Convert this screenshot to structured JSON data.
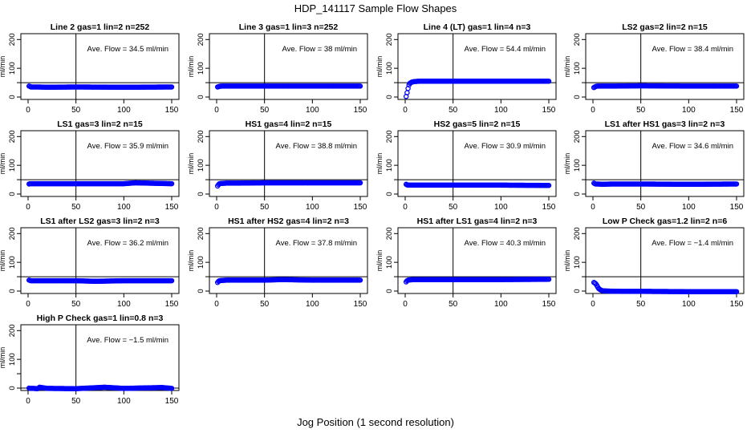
{
  "figure": {
    "title": "HDP_141117  Sample Flow Shapes",
    "xlabel": "Jog Position (1 second resolution)"
  },
  "chart_data": [
    {
      "type": "scatter",
      "title": "Line 2 gas=1 lin=2 n=252",
      "ylabel": "ml/min",
      "annotation": "Ave. Flow =  34.5  ml/min",
      "xlim": [
        0,
        150
      ],
      "ylim": [
        0,
        200
      ],
      "xticks": [
        0,
        50,
        100,
        150
      ],
      "yticks": [
        0,
        100,
        200
      ],
      "ytick_labels": [
        "0",
        "100",
        "200"
      ],
      "extra_yticks": [
        50
      ],
      "vline_x": 50,
      "hline_y": 50,
      "series": [
        {
          "x": [
            1,
            2,
            3,
            5,
            10,
            20,
            50,
            100,
            150
          ],
          "y": [
            38,
            37,
            35,
            35,
            35,
            34,
            35,
            34,
            35
          ]
        }
      ]
    },
    {
      "type": "scatter",
      "title": "Line 3 gas=1 lin=3 n=252",
      "ylabel": "ml/min",
      "annotation": "Ave. Flow =  38  ml/min",
      "xlim": [
        0,
        150
      ],
      "ylim": [
        0,
        200
      ],
      "xticks": [
        0,
        50,
        100,
        150
      ],
      "yticks": [
        0,
        100,
        200
      ],
      "ytick_labels": [
        "0",
        "100",
        "200"
      ],
      "extra_yticks": [
        50
      ],
      "vline_x": 50,
      "hline_y": 50,
      "series": [
        {
          "x": [
            1,
            2,
            3,
            5,
            10,
            20,
            50,
            100,
            150
          ],
          "y": [
            35,
            36,
            37,
            38,
            38,
            38,
            38,
            38,
            38
          ]
        }
      ]
    },
    {
      "type": "scatter",
      "title": "Line 4 (LT) gas=1 lin=4 n=3",
      "ylabel": "ml/min",
      "annotation": "Ave. Flow =  54.4  ml/min",
      "xlim": [
        0,
        150
      ],
      "ylim": [
        0,
        200
      ],
      "xticks": [
        0,
        50,
        100,
        150
      ],
      "yticks": [
        0,
        100,
        200
      ],
      "ytick_labels": [
        "0",
        "100",
        "200"
      ],
      "extra_yticks": [
        50
      ],
      "vline_x": 50,
      "hline_y": 50,
      "series": [
        {
          "x": [
            1,
            2,
            3,
            4,
            5,
            7,
            10,
            15,
            30,
            50,
            75,
            100,
            125,
            150
          ],
          "y": [
            2,
            15,
            30,
            42,
            48,
            52,
            54,
            55,
            55,
            55,
            55,
            55,
            55,
            55
          ]
        }
      ]
    },
    {
      "type": "scatter",
      "title": "LS2 gas=2 lin=2 n=15",
      "ylabel": "ml/min",
      "annotation": "Ave. Flow =  38.4  ml/min",
      "xlim": [
        0,
        150
      ],
      "ylim": [
        0,
        200
      ],
      "xticks": [
        0,
        50,
        100,
        150
      ],
      "yticks": [
        0,
        100,
        200
      ],
      "ytick_labels": [
        "0",
        "100",
        "200"
      ],
      "extra_yticks": [
        50
      ],
      "vline_x": 50,
      "hline_y": 50,
      "series": [
        {
          "x": [
            1,
            2,
            3,
            5,
            10,
            20,
            50,
            100,
            150
          ],
          "y": [
            33,
            35,
            37,
            38,
            38,
            38,
            39,
            38,
            38
          ]
        }
      ]
    },
    {
      "type": "scatter",
      "title": "LS1 gas=3 lin=2 n=15",
      "ylabel": "ml/min",
      "annotation": "Ave. Flow =  35.9  ml/min",
      "xlim": [
        0,
        150
      ],
      "ylim": [
        0,
        200
      ],
      "xticks": [
        0,
        50,
        100,
        150
      ],
      "yticks": [
        0,
        100,
        200
      ],
      "ytick_labels": [
        "0",
        "100",
        "200"
      ],
      "extra_yticks": [
        50
      ],
      "vline_x": 50,
      "hline_y": 50,
      "series": [
        {
          "x": [
            1,
            2,
            3,
            5,
            10,
            20,
            50,
            100,
            112,
            150
          ],
          "y": [
            35,
            36,
            36,
            36,
            36,
            36,
            36,
            36,
            39,
            36
          ]
        }
      ]
    },
    {
      "type": "scatter",
      "title": "HS1 gas=4 lin=2 n=15",
      "ylabel": "ml/min",
      "annotation": "Ave. Flow =  38.8  ml/min",
      "xlim": [
        0,
        150
      ],
      "ylim": [
        0,
        200
      ],
      "xticks": [
        0,
        50,
        100,
        150
      ],
      "yticks": [
        0,
        100,
        200
      ],
      "ytick_labels": [
        "0",
        "100",
        "200"
      ],
      "extra_yticks": [
        50
      ],
      "vline_x": 50,
      "hline_y": 50,
      "series": [
        {
          "x": [
            1,
            2,
            3,
            5,
            10,
            20,
            50,
            100,
            150
          ],
          "y": [
            28,
            33,
            36,
            37,
            38,
            38,
            39,
            39,
            39
          ]
        }
      ]
    },
    {
      "type": "scatter",
      "title": "HS2 gas=5 lin=2 n=15",
      "ylabel": "ml/min",
      "annotation": "Ave. Flow =  30.9  ml/min",
      "xlim": [
        0,
        150
      ],
      "ylim": [
        0,
        200
      ],
      "xticks": [
        0,
        50,
        100,
        150
      ],
      "yticks": [
        0,
        100,
        200
      ],
      "ytick_labels": [
        "0",
        "100",
        "200"
      ],
      "extra_yticks": [
        50
      ],
      "vline_x": 50,
      "hline_y": 50,
      "series": [
        {
          "x": [
            1,
            2,
            3,
            5,
            10,
            20,
            50,
            100,
            150
          ],
          "y": [
            34,
            32,
            31,
            31,
            31,
            31,
            31,
            31,
            30
          ]
        }
      ]
    },
    {
      "type": "scatter",
      "title": "LS1 after HS1 gas=3 lin=2 n=3",
      "ylabel": "ml/min",
      "annotation": "Ave. Flow =  34.6  ml/min",
      "xlim": [
        0,
        150
      ],
      "ylim": [
        0,
        200
      ],
      "xticks": [
        0,
        50,
        100,
        150
      ],
      "yticks": [
        0,
        100,
        200
      ],
      "ytick_labels": [
        "0",
        "100",
        "200"
      ],
      "extra_yticks": [
        50
      ],
      "vline_x": 50,
      "hline_y": 50,
      "series": [
        {
          "x": [
            1,
            2,
            3,
            5,
            10,
            20,
            50,
            100,
            150
          ],
          "y": [
            38,
            36,
            35,
            35,
            34,
            35,
            35,
            34,
            35
          ]
        }
      ]
    },
    {
      "type": "scatter",
      "title": "LS1 after LS2 gas=3 lin=2 n=3",
      "ylabel": "ml/min",
      "annotation": "Ave. Flow =  36.2  ml/min",
      "xlim": [
        0,
        150
      ],
      "ylim": [
        0,
        200
      ],
      "xticks": [
        0,
        50,
        100,
        150
      ],
      "yticks": [
        0,
        100,
        200
      ],
      "ytick_labels": [
        "0",
        "100",
        "200"
      ],
      "extra_yticks": [
        50
      ],
      "vline_x": 50,
      "hline_y": 50,
      "series": [
        {
          "x": [
            1,
            2,
            3,
            5,
            10,
            20,
            50,
            70,
            100,
            150
          ],
          "y": [
            38,
            37,
            36,
            36,
            36,
            36,
            36,
            34,
            36,
            36
          ]
        }
      ]
    },
    {
      "type": "scatter",
      "title": "HS1 after HS2 gas=4 lin=2 n=3",
      "ylabel": "ml/min",
      "annotation": "Ave. Flow =  37.8  ml/min",
      "xlim": [
        0,
        150
      ],
      "ylim": [
        0,
        200
      ],
      "xticks": [
        0,
        50,
        100,
        150
      ],
      "yticks": [
        0,
        100,
        200
      ],
      "ytick_labels": [
        "0",
        "100",
        "200"
      ],
      "extra_yticks": [
        50
      ],
      "vline_x": 50,
      "hline_y": 50,
      "series": [
        {
          "x": [
            1,
            2,
            3,
            5,
            10,
            20,
            50,
            68,
            100,
            150
          ],
          "y": [
            30,
            34,
            36,
            37,
            38,
            38,
            38,
            40,
            38,
            38
          ]
        }
      ]
    },
    {
      "type": "scatter",
      "title": "HS1 after LS1 gas=4 lin=2 n=3",
      "ylabel": "ml/min",
      "annotation": "Ave. Flow =  40.3  ml/min",
      "xlim": [
        0,
        150
      ],
      "ylim": [
        0,
        200
      ],
      "xticks": [
        0,
        50,
        100,
        150
      ],
      "yticks": [
        0,
        100,
        200
      ],
      "ytick_labels": [
        "0",
        "100",
        "200"
      ],
      "extra_yticks": [
        50
      ],
      "vline_x": 50,
      "hline_y": 50,
      "series": [
        {
          "x": [
            1,
            2,
            3,
            5,
            10,
            20,
            50,
            100,
            150
          ],
          "y": [
            32,
            36,
            38,
            39,
            40,
            40,
            40,
            40,
            41
          ]
        }
      ]
    },
    {
      "type": "scatter",
      "title": "Low P Check gas=1.2 lin=2 n=6",
      "ylabel": "ml/min",
      "annotation": "Ave. Flow =  −1.4  ml/min",
      "xlim": [
        0,
        150
      ],
      "ylim": [
        0,
        200
      ],
      "xticks": [
        0,
        50,
        100,
        150
      ],
      "yticks": [
        0,
        100,
        200
      ],
      "ytick_labels": [
        "0",
        "100",
        "200"
      ],
      "extra_yticks": [
        50
      ],
      "vline_x": 50,
      "hline_y": 50,
      "series": [
        {
          "x": [
            1,
            2,
            3,
            4,
            5,
            6,
            8,
            10,
            15,
            30,
            50,
            100,
            150
          ],
          "y": [
            30,
            28,
            25,
            20,
            14,
            9,
            4,
            1,
            0,
            -1,
            -1,
            -2,
            -2
          ]
        }
      ]
    },
    {
      "type": "scatter",
      "title": "High P Check gas=1 lin=0.8 n=3",
      "ylabel": "ml/min",
      "annotation": "Ave. Flow =  −1.5  ml/min",
      "xlim": [
        0,
        150
      ],
      "ylim": [
        0,
        200
      ],
      "xticks": [
        0,
        50,
        100,
        150
      ],
      "yticks": [
        0,
        100,
        200
      ],
      "ytick_labels": [
        "0",
        "100",
        "200"
      ],
      "extra_yticks": [
        50
      ],
      "vline_x": 50,
      "hline_y": 0,
      "series": [
        {
          "x": [
            1,
            2,
            3,
            5,
            10,
            12,
            20,
            50,
            80,
            100,
            140,
            150
          ],
          "y": [
            0,
            -1,
            -1,
            -1,
            -2,
            3,
            -1,
            -2,
            3,
            -1,
            2,
            -1
          ]
        }
      ]
    }
  ]
}
